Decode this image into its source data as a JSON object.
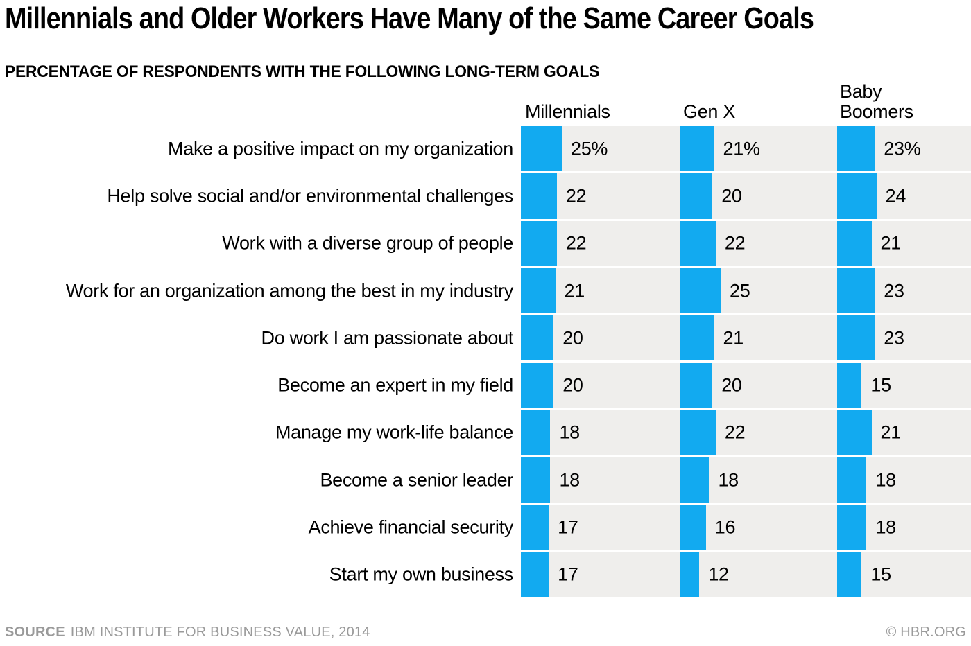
{
  "title": "Millennials and Older Workers Have Many of the Same Career Goals",
  "subtitle": "PERCENTAGE OF RESPONDENTS WITH THE FOLLOWING LONG-TERM GOALS",
  "columns": [
    "Millennials",
    "Gen X",
    "Baby Boomers"
  ],
  "footer": {
    "source_label": "SOURCE",
    "source_text": "IBM INSTITUTE FOR BUSINESS VALUE, 2014",
    "copyright": "© HBR.ORG"
  },
  "colors": {
    "bar": "#12aaf0",
    "band": "#efeeec",
    "footer_text": "#9a9a9a",
    "text": "#000000"
  },
  "chart_data": {
    "type": "bar",
    "orientation": "horizontal",
    "title": "Millennials and Older Workers Have Many of the Same Career Goals",
    "subtitle": "PERCENTAGE OF RESPONDENTS WITH THE FOLLOWING LONG-TERM GOALS",
    "unit": "percent",
    "value_range": [
      0,
      25
    ],
    "first_row_value_suffix": "%",
    "legend_position": "column-headers-top",
    "grid": false,
    "categories": [
      "Make a positive impact on my organization",
      "Help solve social and/or environmental challenges",
      "Work with a diverse group of people",
      "Work for an organization among the best in my industry",
      "Do work I am passionate about",
      "Become an expert in my field",
      "Manage my work-life balance",
      "Become a senior leader",
      "Achieve financial security",
      "Start my own business"
    ],
    "series": [
      {
        "name": "Millennials",
        "values": [
          25,
          22,
          22,
          21,
          20,
          20,
          18,
          18,
          17,
          17
        ]
      },
      {
        "name": "Gen X",
        "values": [
          21,
          20,
          22,
          25,
          21,
          20,
          22,
          18,
          16,
          12
        ]
      },
      {
        "name": "Baby Boomers",
        "values": [
          23,
          24,
          21,
          23,
          23,
          15,
          21,
          18,
          18,
          15
        ]
      }
    ]
  }
}
